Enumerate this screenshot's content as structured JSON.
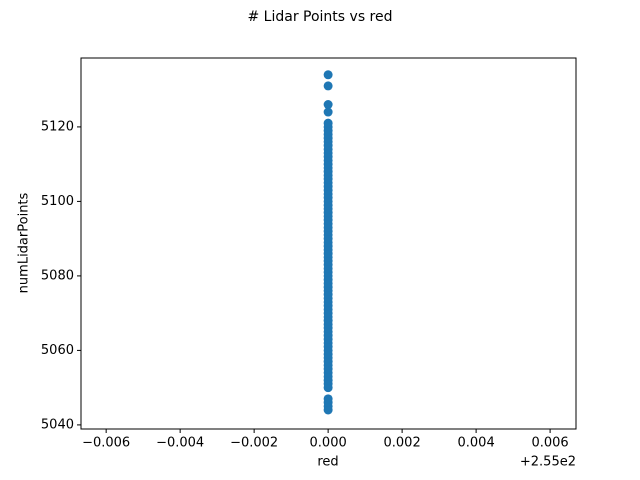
{
  "chart_data": {
    "type": "scatter",
    "title": "# Lidar Points vs red",
    "x_label": "red",
    "y_label": "numLidarPoints",
    "x_offset_label": "+2.55e2",
    "color": "#1f77b4",
    "x": [
      255,
      255,
      255,
      255,
      255,
      255,
      255,
      255,
      255,
      255,
      255,
      255,
      255,
      255,
      255,
      255,
      255,
      255,
      255,
      255,
      255,
      255,
      255,
      255,
      255,
      255,
      255,
      255,
      255,
      255,
      255,
      255,
      255,
      255,
      255,
      255,
      255,
      255,
      255,
      255,
      255,
      255,
      255,
      255,
      255,
      255,
      255,
      255,
      255,
      255,
      255,
      255,
      255,
      255,
      255,
      255,
      255,
      255,
      255,
      255,
      255,
      255,
      255,
      255,
      255,
      255,
      255,
      255,
      255,
      255,
      255,
      255,
      255,
      255,
      255,
      255,
      255,
      255,
      255,
      255
    ],
    "y": [
      5044,
      5045,
      5046,
      5047,
      5050,
      5051,
      5052,
      5053,
      5054,
      5055,
      5056,
      5057,
      5058,
      5059,
      5060,
      5061,
      5062,
      5063,
      5064,
      5065,
      5066,
      5067,
      5068,
      5069,
      5070,
      5071,
      5072,
      5073,
      5074,
      5075,
      5076,
      5077,
      5078,
      5079,
      5080,
      5081,
      5082,
      5083,
      5084,
      5085,
      5086,
      5087,
      5088,
      5089,
      5090,
      5091,
      5092,
      5093,
      5094,
      5095,
      5096,
      5097,
      5098,
      5099,
      5100,
      5101,
      5102,
      5103,
      5104,
      5105,
      5106,
      5107,
      5108,
      5109,
      5110,
      5111,
      5112,
      5113,
      5114,
      5115,
      5116,
      5117,
      5118,
      5119,
      5120,
      5121,
      5124,
      5126,
      5131,
      5134
    ],
    "xlim": [
      254.99332,
      255.0067
    ],
    "xticks": [
      {
        "value": 254.994,
        "label": "−0.006"
      },
      {
        "value": 254.996,
        "label": "−0.004"
      },
      {
        "value": 254.998,
        "label": "−0.002"
      },
      {
        "value": 255,
        "label": "0.000"
      },
      {
        "value": 255.002,
        "label": "0.002"
      },
      {
        "value": 255.004,
        "label": "0.004"
      },
      {
        "value": 255.006,
        "label": "0.006"
      }
    ],
    "ylim": [
      5038.9,
      5138.5
    ],
    "yticks": [
      5040,
      5060,
      5080,
      5100,
      5120
    ],
    "grid": false
  }
}
